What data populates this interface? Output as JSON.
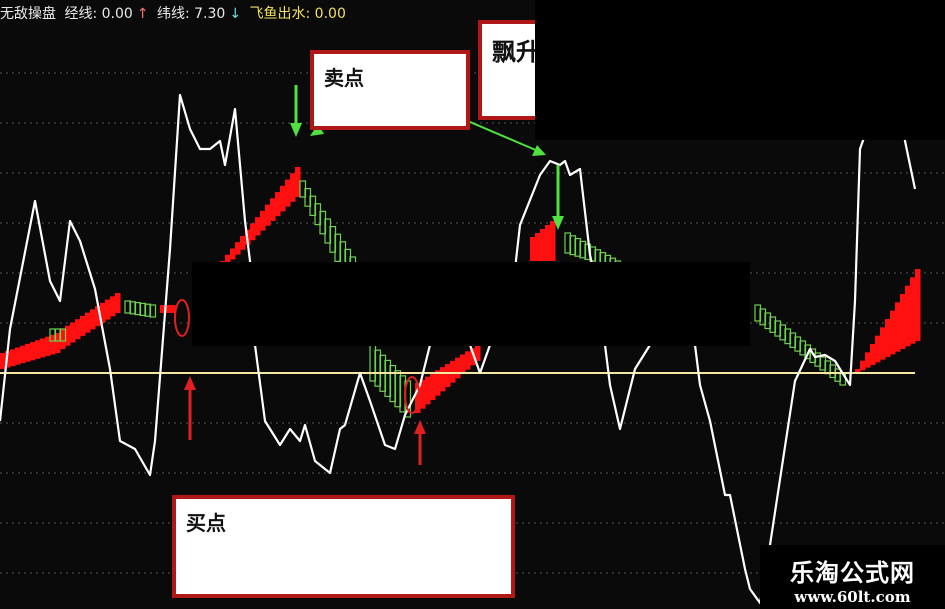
{
  "header": {
    "indicator_name": "无敌操盘",
    "line1_label": "经线: 0.00",
    "line1_arrow": "↑",
    "line2_label": "纬线: 7.30",
    "line2_arrow": "↓",
    "line3_label": "飞鱼出水: 0.00"
  },
  "annotations": {
    "sell_label": "卖点",
    "rise_label": "飘升",
    "buy_label": "买点"
  },
  "watermark": {
    "name": "乐淘公式网",
    "url": "www.60lt.com"
  },
  "colors": {
    "background": "#0a0a0a",
    "main_line": "#ffffff",
    "zero_line": "#f5e6a0",
    "rise_block": "#ff1010",
    "fall_block": "#70d050",
    "grid": "#555555",
    "buy_marker": "#e02020",
    "sell_marker": "#50e040"
  },
  "chart_data": {
    "type": "line",
    "grid": true,
    "zero_line": 0,
    "main_line": [
      [
        0,
        -24
      ],
      [
        2,
        22
      ],
      [
        7,
        86
      ],
      [
        10,
        46
      ],
      [
        12,
        36
      ],
      [
        14,
        76
      ],
      [
        16,
        66
      ],
      [
        19,
        42
      ],
      [
        22,
        2
      ],
      [
        24,
        -34
      ],
      [
        27,
        -38
      ],
      [
        30,
        -51
      ],
      [
        31,
        -34
      ],
      [
        34,
        62
      ],
      [
        36,
        139
      ],
      [
        38,
        122
      ],
      [
        40,
        112
      ],
      [
        42,
        112
      ],
      [
        44,
        116
      ],
      [
        45,
        104
      ],
      [
        47,
        132
      ],
      [
        49,
        76
      ],
      [
        50,
        56
      ],
      [
        51,
        14
      ],
      [
        53,
        -24
      ],
      [
        56,
        -36
      ],
      [
        58,
        -28
      ],
      [
        60,
        -34
      ],
      [
        61,
        -26
      ],
      [
        63,
        -44
      ],
      [
        66,
        -50
      ],
      [
        68,
        -28
      ],
      [
        69,
        -26
      ],
      [
        72,
        0
      ],
      [
        74,
        -14
      ],
      [
        77,
        -36
      ],
      [
        79,
        -38
      ],
      [
        81,
        -21
      ],
      [
        84,
        -6
      ],
      [
        86,
        14
      ],
      [
        88,
        36
      ],
      [
        94,
        14
      ],
      [
        96,
        0
      ],
      [
        98,
        14
      ],
      [
        103,
        52
      ],
      [
        104,
        74
      ],
      [
        108,
        99
      ],
      [
        110,
        106
      ],
      [
        112,
        104
      ],
      [
        113,
        106
      ],
      [
        114,
        99
      ],
      [
        116,
        102
      ],
      [
        118,
        59
      ],
      [
        120,
        36
      ],
      [
        121,
        14
      ],
      [
        122,
        -6
      ],
      [
        124,
        -28
      ],
      [
        127,
        2
      ],
      [
        130,
        14
      ],
      [
        134,
        26
      ],
      [
        139,
        14
      ],
      [
        140,
        -6
      ],
      [
        142,
        -24
      ],
      [
        145,
        -61
      ],
      [
        146,
        -61
      ],
      [
        149,
        -98
      ],
      [
        150,
        -108
      ],
      [
        152,
        -115
      ],
      [
        154,
        -86
      ],
      [
        159,
        -4
      ],
      [
        162,
        12
      ],
      [
        163,
        8
      ],
      [
        165,
        9
      ],
      [
        167,
        6
      ],
      [
        170,
        -6
      ],
      [
        171,
        36
      ],
      [
        172,
        112
      ],
      [
        173,
        119
      ],
      [
        176,
        156
      ],
      [
        179,
        156
      ],
      [
        181,
        116
      ],
      [
        183,
        92
      ]
    ],
    "rise_bands": [
      {
        "from": 0,
        "to": 12,
        "top": [
          10,
          20
        ],
        "bottom": [
          2,
          10
        ]
      },
      {
        "from": 12,
        "to": 24,
        "top": [
          22,
          40
        ],
        "bottom": [
          12,
          30
        ]
      },
      {
        "from": 32,
        "to": 35,
        "top": [
          34,
          34
        ],
        "bottom": [
          30,
          30
        ]
      },
      {
        "from": 44,
        "to": 60,
        "top": [
          56,
          103
        ],
        "bottom": [
          52,
          88
        ]
      },
      {
        "from": 83,
        "to": 96,
        "top": [
          -5,
          14
        ],
        "bottom": [
          -20,
          6
        ]
      },
      {
        "from": 106,
        "to": 111,
        "top": [
          68,
          76
        ],
        "bottom": [
          56,
          56
        ]
      },
      {
        "from": 171,
        "to": 184,
        "top": [
          2,
          52
        ],
        "bottom": [
          0,
          16
        ]
      }
    ],
    "fall_bands": [
      {
        "from": 10,
        "to": 13,
        "top": [
          22,
          22
        ],
        "bottom": [
          16,
          16
        ]
      },
      {
        "from": 25,
        "to": 31,
        "top": [
          36,
          34
        ],
        "bottom": [
          30,
          28
        ]
      },
      {
        "from": 60,
        "to": 71,
        "top": [
          96,
          58
        ],
        "bottom": [
          88,
          42
        ]
      },
      {
        "from": 74,
        "to": 82,
        "top": [
          14,
          -4
        ],
        "bottom": [
          -4,
          -22
        ]
      },
      {
        "from": 113,
        "to": 124,
        "top": [
          70,
          56
        ],
        "bottom": [
          60,
          52
        ]
      },
      {
        "from": 151,
        "to": 169,
        "top": [
          34,
          0
        ],
        "bottom": [
          26,
          -6
        ]
      }
    ],
    "buy_signals": [
      38,
      84
    ],
    "sell_signals": [
      59,
      112
    ]
  }
}
